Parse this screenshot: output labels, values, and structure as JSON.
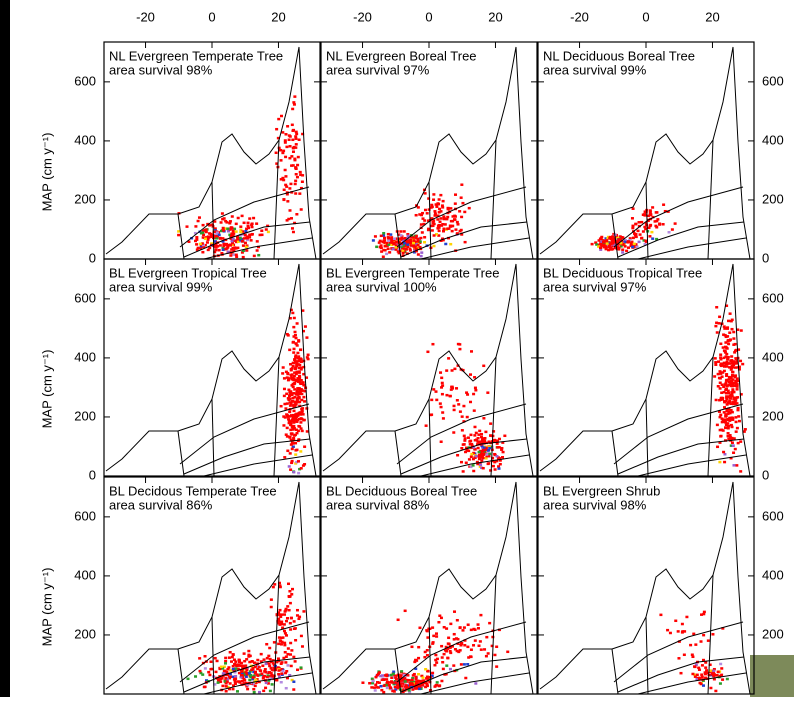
{
  "chart_data": {
    "type": "scatter-panels",
    "y_label": "MAP (cm y⁻¹)",
    "xlim": [
      -32.5,
      32.5
    ],
    "xticks": [
      -20,
      0,
      20
    ],
    "ylim": [
      0,
      735
    ],
    "yticks": [
      0,
      200,
      400,
      600
    ],
    "panels": [
      {
        "title": "NL Evergreen Temperate Tree",
        "survival": "area survival 98%"
      },
      {
        "title": "NL Evergreen Boreal Tree",
        "survival": "area survival 97%"
      },
      {
        "title": "NL Deciduous Boreal Tree",
        "survival": "area survival 99%"
      },
      {
        "title": "BL Evergreen Tropical Tree",
        "survival": "area survival 99%"
      },
      {
        "title": "BL Evergreen Temperate Tree",
        "survival": "area survival 100%"
      },
      {
        "title": "BL Deciduous Tropical Tree",
        "survival": "area survival 97%"
      },
      {
        "title": "BL Decidous Temperate Tree",
        "survival": "area survival 86%"
      },
      {
        "title": "BL Deciduous Boreal Tree",
        "survival": "area survival 88%"
      },
      {
        "title": "BL Evergreen Shrub",
        "survival": "area survival 98%"
      }
    ]
  }
}
